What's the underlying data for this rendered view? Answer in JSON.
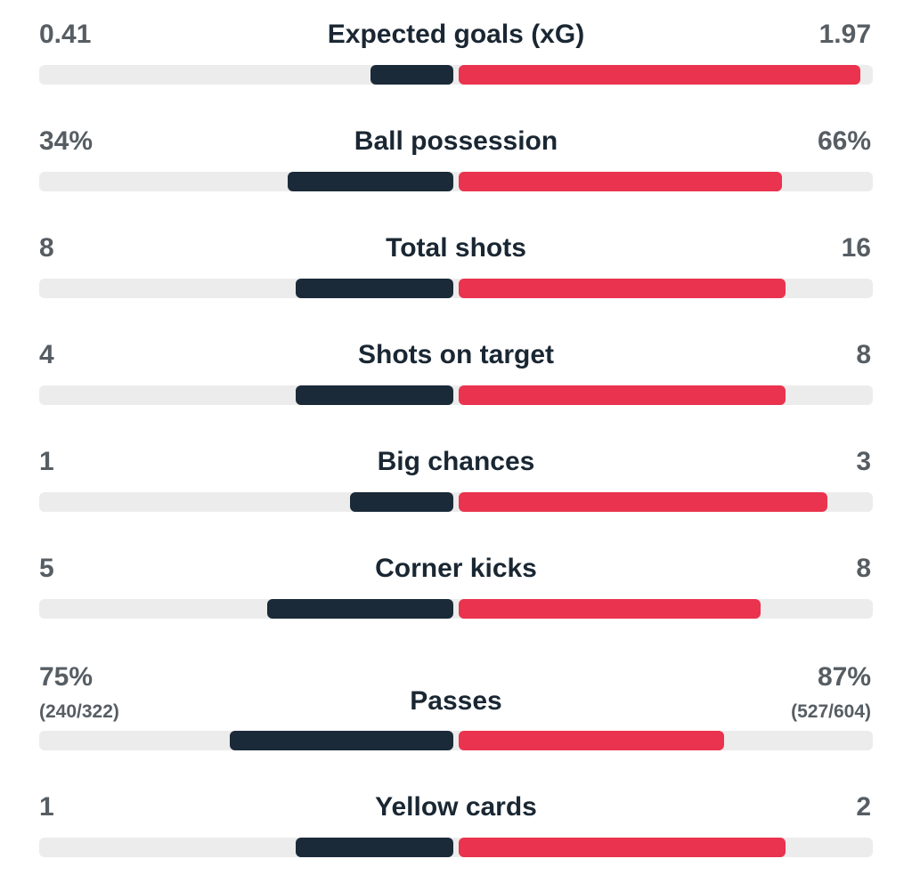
{
  "colors": {
    "home": "#1b2a38",
    "away": "#ea334e",
    "track": "#ececec",
    "value_text": "#565d63",
    "label_text": "#1a2733"
  },
  "stats": [
    {
      "label": "Expected goals (xG)",
      "home": "0.41",
      "away": "1.97",
      "home_bar": 0.2,
      "away_bar": 0.97
    },
    {
      "label": "Ball possession",
      "home": "34%",
      "away": "66%",
      "home_bar": 0.4,
      "away_bar": 0.78
    },
    {
      "label": "Total shots",
      "home": "8",
      "away": "16",
      "home_bar": 0.38,
      "away_bar": 0.79
    },
    {
      "label": "Shots on target",
      "home": "4",
      "away": "8",
      "home_bar": 0.38,
      "away_bar": 0.79
    },
    {
      "label": "Big chances",
      "home": "1",
      "away": "3",
      "home_bar": 0.25,
      "away_bar": 0.89
    },
    {
      "label": "Corner kicks",
      "home": "5",
      "away": "8",
      "home_bar": 0.45,
      "away_bar": 0.73
    },
    {
      "label": "Passes",
      "home": "75%",
      "home_detail": "(240/322)",
      "away": "87%",
      "away_detail": "(527/604)",
      "home_bar": 0.54,
      "away_bar": 0.64
    },
    {
      "label": "Yellow cards",
      "home": "1",
      "away": "2",
      "home_bar": 0.38,
      "away_bar": 0.79
    }
  ]
}
